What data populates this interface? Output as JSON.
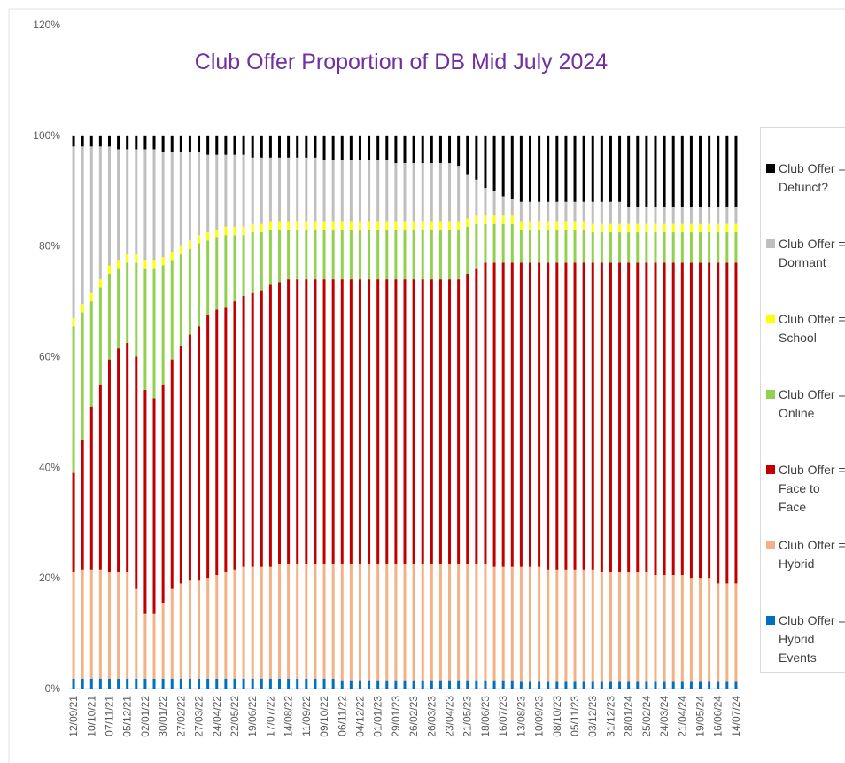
{
  "chart_data": {
    "type": "stacked-bar",
    "title": "Club Offer Proportion of DB Mid July 2024",
    "categories": [
      "12/09/21",
      null,
      "10/10/21",
      null,
      "07/11/21",
      null,
      "05/12/21",
      null,
      "02/01/22",
      null,
      "30/01/22",
      null,
      "27/02/22",
      null,
      "27/03/22",
      null,
      "24/04/22",
      null,
      "22/05/22",
      null,
      "19/06/22",
      null,
      "17/07/22",
      null,
      "14/08/22",
      null,
      "11/09/22",
      null,
      "09/10/22",
      null,
      "06/11/22",
      null,
      "04/12/22",
      null,
      "01/01/23",
      null,
      "29/01/23",
      null,
      "26/02/23",
      null,
      "26/03/23",
      null,
      "23/04/23",
      null,
      "21/05/23",
      null,
      "18/06/23",
      null,
      "16/07/23",
      null,
      "13/08/23",
      null,
      "10/09/23",
      null,
      "08/10/23",
      null,
      "05/11/23",
      null,
      "03/12/23",
      null,
      "31/12/23",
      null,
      "28/01/24",
      null,
      "25/02/24",
      null,
      "24/03/24",
      null,
      "21/04/24",
      null,
      "19/05/24",
      null,
      "16/06/24",
      null,
      "14/07/24"
    ],
    "ylim": [
      0,
      120
    ],
    "yticks": [
      {
        "value": 0,
        "label": "0%"
      },
      {
        "value": 20,
        "label": "20%"
      },
      {
        "value": 40,
        "label": "40%"
      },
      {
        "value": 60,
        "label": "60%"
      },
      {
        "value": 80,
        "label": "80%"
      },
      {
        "value": 100,
        "label": "100%"
      },
      {
        "value": 120,
        "label": "120%"
      }
    ],
    "legend": "right",
    "series": [
      {
        "name": "Club Offer = Hybrid Events",
        "color": "#0070c0",
        "values": [
          1.8,
          1.8,
          1.8,
          1.8,
          1.8,
          1.8,
          1.8,
          1.8,
          1.8,
          1.8,
          1.8,
          1.8,
          1.8,
          1.8,
          1.8,
          1.8,
          1.8,
          1.8,
          1.8,
          1.8,
          1.8,
          1.8,
          1.8,
          1.8,
          1.8,
          1.8,
          1.8,
          1.8,
          1.8,
          1.8,
          1.5,
          1.5,
          1.5,
          1.5,
          1.5,
          1.5,
          1.5,
          1.5,
          1.5,
          1.5,
          1.5,
          1.5,
          1.5,
          1.5,
          1.5,
          1.5,
          1.5,
          1.5,
          1.5,
          1.5,
          1.2,
          1.2,
          1.2,
          1.2,
          1.2,
          1.2,
          1.2,
          1.2,
          1.2,
          1.2,
          1.2,
          1.2,
          1.2,
          1.2,
          1.2,
          1.2,
          1.2,
          1.2,
          1.2,
          1.2,
          1.2,
          1.2,
          1.2,
          1.2,
          1.2
        ]
      },
      {
        "name": "Club Offer = Hybrid",
        "color": "#f4b183",
        "values": [
          19.2,
          19.7,
          19.7,
          19.7,
          19.2,
          19.2,
          19.2,
          16.2,
          11.7,
          11.7,
          13.7,
          16.2,
          17.2,
          17.7,
          17.7,
          18.2,
          18.7,
          19.2,
          19.7,
          20.2,
          20.2,
          20.2,
          20.2,
          20.7,
          20.7,
          20.7,
          20.7,
          20.7,
          20.7,
          20.7,
          21,
          21,
          21,
          21,
          21,
          21,
          21,
          21,
          21,
          21,
          21,
          21,
          21,
          21,
          21,
          21,
          21,
          20.5,
          20.5,
          20.5,
          20.8,
          20.8,
          20.8,
          20.3,
          20.3,
          20.3,
          20.3,
          20.3,
          20.3,
          19.8,
          19.8,
          19.8,
          19.8,
          19.8,
          19.8,
          19.3,
          19.3,
          19.3,
          19.3,
          18.8,
          18.8,
          18.8,
          17.8,
          17.8,
          17.8
        ]
      },
      {
        "name": "Club Offer = Face to Face",
        "color": "#c00000",
        "values": [
          18,
          23.5,
          29.5,
          33.5,
          38.5,
          40.5,
          41.5,
          42,
          40.5,
          39,
          39.5,
          41.5,
          43,
          44.5,
          46,
          47.5,
          48,
          48,
          48.5,
          49,
          49.5,
          50,
          51,
          51,
          51.5,
          51.5,
          51.5,
          51.5,
          51.5,
          51.5,
          51.5,
          51.5,
          51.5,
          51.5,
          51.5,
          51.5,
          51.5,
          51.5,
          51.5,
          51.5,
          51.5,
          51.5,
          51.5,
          51.5,
          52.5,
          53.5,
          54.5,
          55,
          55,
          55,
          55,
          55,
          55,
          55.5,
          55.5,
          55.5,
          55.5,
          55.5,
          55.5,
          56,
          56,
          56,
          56,
          56,
          56,
          56.5,
          56.5,
          56.5,
          56.5,
          57,
          57,
          57,
          58,
          58,
          58
        ]
      },
      {
        "name": "Club Offer = Online",
        "color": "#92d050",
        "values": [
          26.5,
          23,
          19,
          17.5,
          15.5,
          14.5,
          14.5,
          17,
          22,
          23.5,
          21.5,
          18,
          16.5,
          15.5,
          15,
          13.5,
          13,
          13,
          12,
          11,
          11,
          10.5,
          10,
          9.5,
          9,
          9,
          9,
          9,
          9,
          9,
          9,
          9,
          9,
          9,
          9,
          9,
          9,
          9,
          9,
          9,
          9,
          9,
          9,
          9,
          8.5,
          8,
          7,
          7,
          7,
          7,
          6,
          6,
          6,
          6,
          6,
          6,
          6,
          6,
          5.5,
          5.5,
          5.5,
          5.5,
          5.5,
          5.5,
          5.5,
          5.5,
          5.5,
          5.5,
          5.5,
          5.5,
          5.5,
          5.5,
          5.5,
          5.5,
          5.5
        ]
      },
      {
        "name": "Club Offer = School",
        "color": "#ffff00",
        "values": [
          1.5,
          1.5,
          1.5,
          1.5,
          1.5,
          1.5,
          1.5,
          1.5,
          1.5,
          1.5,
          1.5,
          1.5,
          1.5,
          1.5,
          1.5,
          1.5,
          1.5,
          1.5,
          1.5,
          1.5,
          1.5,
          1.5,
          1.5,
          1.5,
          1.5,
          1.5,
          1.5,
          1.5,
          1.5,
          1.5,
          1.5,
          1.5,
          1.5,
          1.5,
          1.5,
          1.5,
          1.5,
          1.5,
          1.5,
          1.5,
          1.5,
          1.5,
          1.5,
          1.5,
          1.5,
          1.5,
          1.5,
          1.5,
          1.5,
          1.5,
          1.5,
          1.5,
          1.5,
          1.5,
          1.5,
          1.5,
          1.5,
          1.5,
          1.5,
          1.5,
          1.5,
          1.5,
          1.5,
          1.5,
          1.5,
          1.5,
          1.5,
          1.5,
          1.5,
          1.5,
          1.5,
          1.5,
          1.5,
          1.5,
          1.5
        ]
      },
      {
        "name": "Club Offer = Dormant",
        "color": "#bfbfbf",
        "values": [
          31,
          28.5,
          26.5,
          24,
          21.5,
          20,
          19,
          19,
          20,
          20,
          19,
          18,
          17,
          16,
          15,
          14,
          13.5,
          13,
          13,
          13,
          12,
          12,
          11.5,
          11.5,
          11.5,
          11.5,
          11.5,
          11.5,
          11,
          11,
          11,
          11,
          11,
          11,
          11,
          11,
          10.5,
          10.5,
          10.5,
          10.5,
          10.5,
          10.5,
          10.5,
          10,
          8,
          6.5,
          5,
          4.5,
          3.5,
          3,
          3.5,
          3.5,
          3.5,
          3.5,
          3.5,
          3.5,
          3.5,
          3.5,
          4,
          4,
          4,
          4,
          3,
          3,
          3,
          3,
          3,
          3,
          3,
          3,
          3,
          3,
          3,
          3,
          3
        ]
      },
      {
        "name": "Club Offer = Defunct?",
        "color": "#000000",
        "values": [
          2,
          2,
          2,
          2,
          2,
          2.5,
          2.5,
          2.5,
          2.5,
          2.5,
          3,
          3,
          3,
          3,
          3,
          3.5,
          3.5,
          3.5,
          3.5,
          3.5,
          4,
          4,
          4,
          4,
          4,
          4,
          4,
          4,
          4.5,
          4.5,
          4.5,
          4.5,
          4.5,
          4.5,
          4.5,
          4.5,
          5,
          5,
          5,
          5,
          5,
          5,
          5,
          5.5,
          7,
          8,
          9.5,
          10,
          11,
          11.5,
          12,
          12,
          12,
          12,
          12,
          12,
          12,
          12,
          12,
          12,
          12,
          12,
          13,
          13,
          13,
          13,
          13,
          13,
          13,
          13,
          13,
          13,
          13,
          13,
          13
        ]
      }
    ]
  }
}
